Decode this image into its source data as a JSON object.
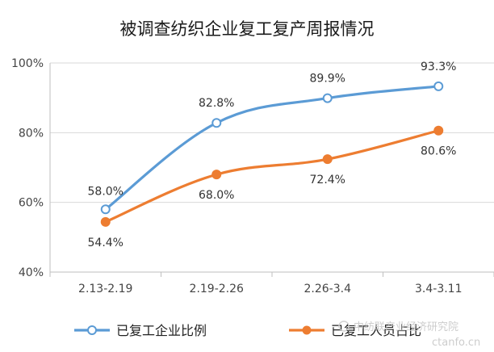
{
  "chart_data": {
    "type": "line",
    "title": "被调查纺织企业复工复产周报情况",
    "categories": [
      "2.13-2.19",
      "2.19-2.26",
      "2.26-3.4",
      "3.4-3.11"
    ],
    "ylim": [
      40,
      100
    ],
    "yticks": [
      "40%",
      "60%",
      "80%",
      "100%"
    ],
    "grid": true,
    "legend_position": "bottom",
    "series": [
      {
        "name": "已复工企业比例",
        "color": "#5b9bd5",
        "marker": "open-circle",
        "values": [
          58.0,
          82.8,
          89.9,
          93.3
        ],
        "labels": [
          "58.0%",
          "82.8%",
          "89.9%",
          "93.3%"
        ]
      },
      {
        "name": "已复工人员占比",
        "color": "#ed7d31",
        "marker": "filled-circle",
        "values": [
          54.4,
          68.0,
          72.4,
          80.6
        ],
        "labels": [
          "54.4%",
          "68.0%",
          "72.4%",
          "80.6%"
        ]
      }
    ]
  },
  "watermark": {
    "line1": "中纺联产业经济研究院",
    "line2": "ctanfo.cn"
  }
}
